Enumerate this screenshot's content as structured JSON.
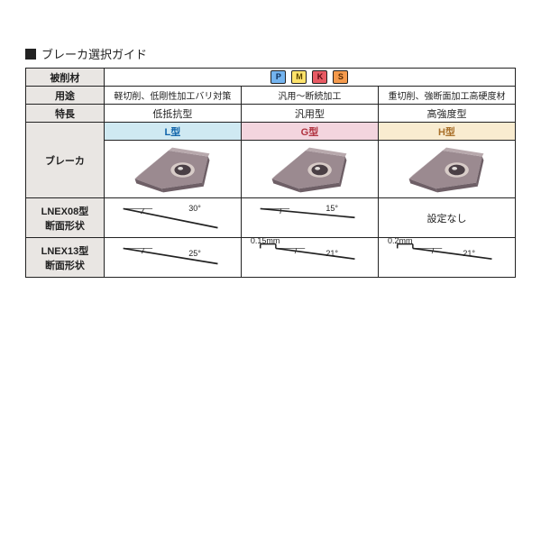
{
  "title": "ブレーカ選択ガイド",
  "rows": {
    "material": "被削材",
    "usage": "用途",
    "feature": "特長",
    "breaker": "ブレーカ",
    "lnex08": "LNEX08型\n断面形状",
    "lnex13": "LNEX13型\n断面形状"
  },
  "badges": [
    {
      "letter": "P",
      "bg": "#74b4ef",
      "fg": "#0b2b55"
    },
    {
      "letter": "M",
      "bg": "#ffe36b",
      "fg": "#5a4500"
    },
    {
      "letter": "K",
      "bg": "#e85a63",
      "fg": "#5a0b12"
    },
    {
      "letter": "S",
      "bg": "#f59a4c",
      "fg": "#5a2a00"
    }
  ],
  "columns": [
    {
      "key": "L",
      "usage": "軽切削、低剛性加工バリ対策",
      "feature": "低抵抗型",
      "type_label": "L型",
      "head_bg": "#cfe9f2",
      "head_color": "#1064aa",
      "lnex08": {
        "angle": "30°",
        "landmm": null,
        "present": true
      },
      "lnex13": {
        "angle": "25°",
        "landmm": null,
        "present": true
      }
    },
    {
      "key": "G",
      "usage": "汎用～断続加工",
      "feature": "汎用型",
      "type_label": "G型",
      "head_bg": "#f3d5de",
      "head_color": "#b0323f",
      "lnex08": {
        "angle": "15°",
        "landmm": null,
        "present": true
      },
      "lnex13": {
        "angle": "21°",
        "landmm": "0.15mm",
        "present": true
      }
    },
    {
      "key": "H",
      "usage": "重切削、強断面加工高硬度材",
      "feature": "高強度型",
      "type_label": "H型",
      "head_bg": "#f9ecd0",
      "head_color": "#a9702a",
      "lnex08": {
        "present": false,
        "none_label": "設定なし"
      },
      "lnex13": {
        "angle": "21°",
        "landmm": "0.2mm",
        "present": true
      }
    }
  ],
  "insert_colors": {
    "face_light": "#b8a9ad",
    "face_mid": "#9b8a90",
    "face_dark": "#6e5f66",
    "hole_dark": "#4a3f45",
    "hole_rim": "#d8ccc8"
  },
  "cross_colors": {
    "stroke": "#222222",
    "arc": "#222222"
  },
  "table_colwidths": {
    "header_pct": 16,
    "col_pct": 28
  }
}
